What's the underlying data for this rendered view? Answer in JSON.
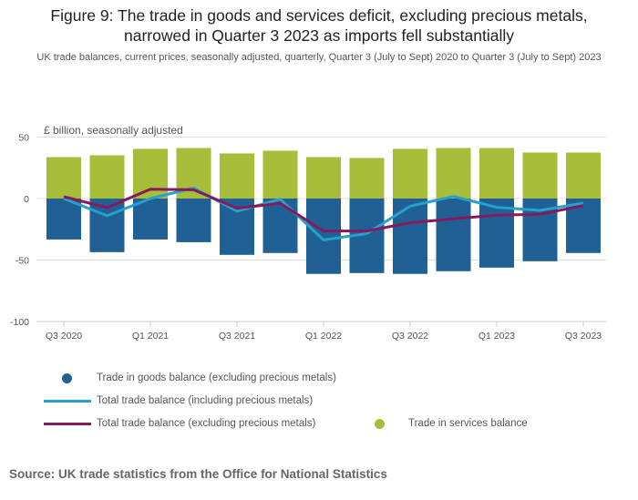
{
  "title_line1": "Figure 9: The trade in goods and services deficit, excluding precious metals,",
  "title_line2": "narrowed in Quarter 3 2023 as imports fell substantially",
  "subtitle": "UK trade balances, current prices, seasonally adjusted, quarterly, Quarter 3 (July to Sept) 2020 to Quarter 3 (July to Sept) 2023",
  "source": "Source: UK trade statistics from the Office for National Statistics",
  "chart_data": {
    "type": "bar",
    "ylabel": "£ billion, seasonally adjusted",
    "ylim": [
      -100,
      50
    ],
    "yticks": [
      "50",
      "0",
      "-50",
      "-100"
    ],
    "ytick_values": [
      50,
      0,
      -50,
      -100
    ],
    "categories": [
      "Q3 2020",
      "Q4 2020",
      "Q1 2021",
      "Q2 2021",
      "Q3 2021",
      "Q4 2021",
      "Q1 2022",
      "Q2 2022",
      "Q3 2022",
      "Q4 2022",
      "Q1 2023",
      "Q2 2023",
      "Q3 2023"
    ],
    "xtick_labels": [
      "Q3 2020",
      "",
      "Q1 2021",
      "",
      "Q3 2021",
      "",
      "Q1 2022",
      "",
      "Q3 2022",
      "",
      "Q1 2023",
      "",
      "Q3 2023"
    ],
    "series": [
      {
        "name": "Trade in goods balance (excluding precious metals)",
        "kind": "bar",
        "color": "#206095",
        "values": [
          -33.3,
          -43.6,
          -33.3,
          -35.5,
          -45.8,
          -44.3,
          -61.3,
          -60.6,
          -61.3,
          -59.1,
          -56.2,
          -51.0,
          -44.3
        ]
      },
      {
        "name": "Trade in services balance",
        "kind": "bar",
        "color": "#a8bd3a",
        "values": [
          33.7,
          35.2,
          40.4,
          41.1,
          36.7,
          38.9,
          33.7,
          33.0,
          40.4,
          41.1,
          41.1,
          37.4,
          37.4
        ]
      },
      {
        "name": "Total trade balance (including precious metals)",
        "kind": "line",
        "color": "#27a0cc",
        "values": [
          0.0,
          -14.0,
          0.0,
          8.6,
          -10.3,
          -0.5,
          -33.7,
          -28.5,
          -6.2,
          1.7,
          -7.1,
          -9.6,
          -3.7
        ]
      },
      {
        "name": "Total trade balance (excluding precious metals)",
        "kind": "line",
        "color": "#871a5b",
        "values": [
          1.5,
          -7.4,
          7.6,
          7.1,
          -7.9,
          -3.9,
          -26.4,
          -26.4,
          -19.7,
          -16.5,
          -13.5,
          -12.8,
          -5.7
        ]
      }
    ],
    "grid": true,
    "legend_position": "bottom"
  }
}
